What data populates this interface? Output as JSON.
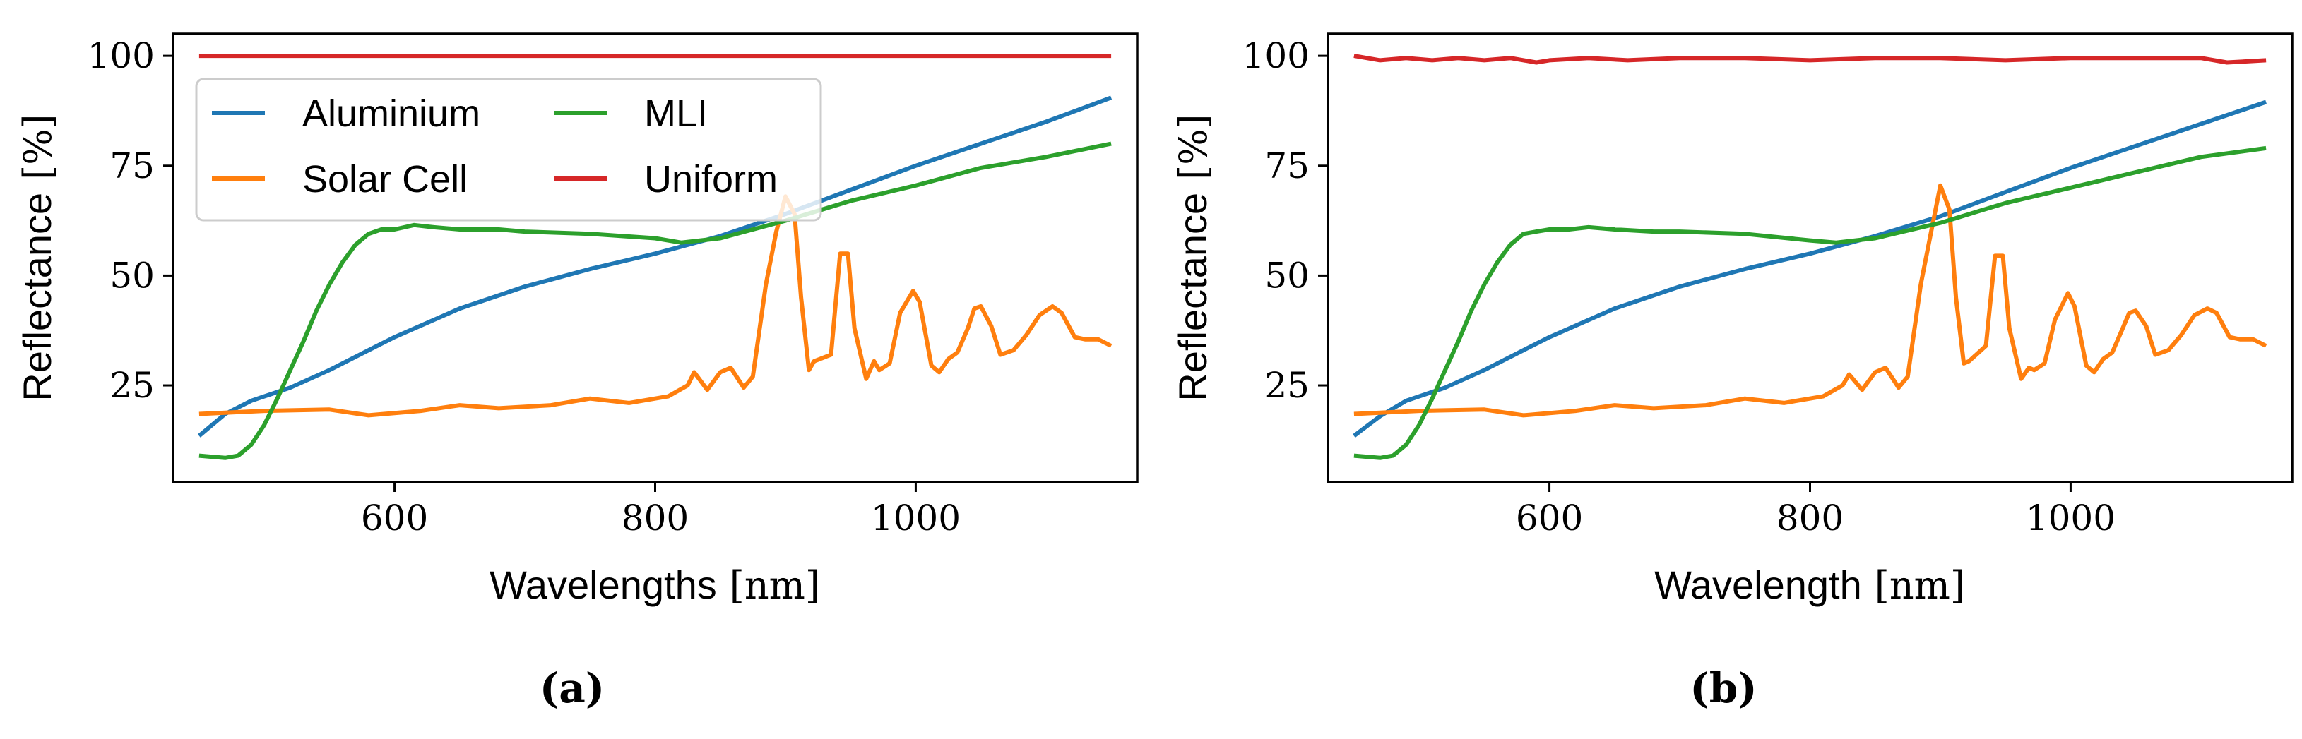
{
  "colors": {
    "Aluminium": "#1f77b4",
    "Solar Cell": "#ff7f0e",
    "MLI": "#2ca02c",
    "Uniform": "#d62728"
  },
  "chart_data": [
    {
      "type": "line",
      "panel_label": "(a)",
      "xlabel": "Wavelengths",
      "xlabel_unit": "[nm]",
      "ylabel": "Reflectance",
      "ylabel_unit": "[%]",
      "xlim": [
        430,
        1170
      ],
      "ylim": [
        3,
        105
      ],
      "xticks": [
        600,
        800,
        1000
      ],
      "yticks": [
        25,
        50,
        75,
        100
      ],
      "legend": {
        "placement": "upper-left",
        "columns": 2,
        "entries": [
          "Aluminium",
          "Solar Cell",
          "MLI",
          "Uniform"
        ]
      },
      "series": [
        {
          "name": "Aluminium",
          "x": [
            450,
            470,
            490,
            520,
            550,
            580,
            600,
            650,
            700,
            750,
            800,
            850,
            900,
            950,
            1000,
            1050,
            1100,
            1150
          ],
          "y": [
            13.5,
            18.5,
            21.5,
            24.5,
            28.5,
            33,
            36,
            42.5,
            47.5,
            51.5,
            55,
            59,
            64,
            69.5,
            75,
            80,
            85,
            90.5
          ]
        },
        {
          "name": "Solar Cell",
          "x": [
            450,
            500,
            550,
            580,
            620,
            650,
            680,
            720,
            750,
            780,
            810,
            825,
            830,
            840,
            850,
            858,
            868,
            875,
            885,
            893,
            900,
            907,
            912,
            918,
            922,
            935,
            942,
            948,
            953,
            962,
            968,
            972,
            980,
            988,
            998,
            1003,
            1012,
            1018,
            1025,
            1032,
            1040,
            1045,
            1050,
            1058,
            1065,
            1075,
            1085,
            1095,
            1105,
            1112,
            1122,
            1130,
            1140,
            1150
          ],
          "y": [
            18.5,
            19.2,
            19.5,
            18.2,
            19.2,
            20.5,
            19.8,
            20.5,
            22,
            21,
            22.5,
            25,
            28,
            24,
            28,
            29,
            24.5,
            27,
            48,
            60,
            68,
            64,
            45,
            28.5,
            30.5,
            32,
            55,
            55,
            38,
            26.5,
            30.5,
            28.5,
            30,
            41.5,
            46.5,
            44,
            29.5,
            28,
            31,
            32.5,
            38,
            42.5,
            43,
            38.5,
            32,
            33,
            36.5,
            41,
            43,
            41.5,
            36,
            35.5,
            35.5,
            34
          ]
        },
        {
          "name": "MLI",
          "x": [
            450,
            470,
            480,
            490,
            500,
            510,
            520,
            530,
            540,
            550,
            560,
            570,
            580,
            590,
            600,
            615,
            630,
            650,
            680,
            700,
            750,
            800,
            820,
            850,
            900,
            950,
            1000,
            1050,
            1100,
            1150
          ],
          "y": [
            9,
            8.5,
            9,
            11.5,
            16,
            22,
            28.5,
            35,
            42,
            48,
            53,
            57,
            59.5,
            60.5,
            60.5,
            61.5,
            61,
            60.5,
            60.5,
            60,
            59.5,
            58.5,
            57.5,
            58.5,
            62.5,
            67,
            70.5,
            74.5,
            77,
            80
          ]
        },
        {
          "name": "Uniform",
          "x": [
            450,
            1150
          ],
          "y": [
            100,
            100
          ]
        }
      ]
    },
    {
      "type": "line",
      "panel_label": "(b)",
      "xlabel": "Wavelength",
      "xlabel_unit": "[nm]",
      "ylabel": "Reflectance",
      "ylabel_unit": "[%]",
      "xlim": [
        430,
        1170
      ],
      "ylim": [
        3,
        105
      ],
      "xticks": [
        600,
        800,
        1000
      ],
      "yticks": [
        25,
        50,
        75,
        100
      ],
      "series": [
        {
          "name": "Aluminium",
          "x": [
            450,
            470,
            490,
            520,
            550,
            580,
            600,
            650,
            700,
            750,
            800,
            850,
            900,
            950,
            1000,
            1050,
            1100,
            1150
          ],
          "y": [
            13.5,
            18,
            21.5,
            24.5,
            28.5,
            33,
            36,
            42.5,
            47.5,
            51.5,
            55,
            59,
            63.5,
            69,
            74.5,
            79.5,
            84.5,
            89.5
          ]
        },
        {
          "name": "Solar Cell",
          "x": [
            450,
            500,
            550,
            580,
            620,
            650,
            680,
            720,
            750,
            780,
            810,
            825,
            830,
            840,
            850,
            858,
            868,
            875,
            885,
            893,
            900,
            907,
            912,
            918,
            922,
            935,
            942,
            948,
            953,
            962,
            968,
            972,
            980,
            988,
            998,
            1003,
            1012,
            1018,
            1025,
            1032,
            1040,
            1045,
            1050,
            1058,
            1065,
            1075,
            1085,
            1095,
            1105,
            1112,
            1122,
            1130,
            1140,
            1150
          ],
          "y": [
            18.5,
            19.2,
            19.5,
            18.2,
            19.2,
            20.5,
            19.8,
            20.5,
            22,
            21,
            22.5,
            25,
            27.5,
            24,
            28,
            29,
            24.5,
            27,
            48,
            60,
            70.5,
            65,
            45,
            30,
            30.5,
            34,
            54.5,
            54.5,
            38,
            26.5,
            29,
            28.5,
            30,
            40,
            46,
            43,
            29.5,
            28,
            31,
            32.5,
            38,
            41.5,
            42,
            38.5,
            32,
            33,
            36.5,
            41,
            42.5,
            41.5,
            36,
            35.5,
            35.5,
            34
          ]
        },
        {
          "name": "MLI",
          "x": [
            450,
            470,
            480,
            490,
            500,
            510,
            520,
            530,
            540,
            550,
            560,
            570,
            580,
            590,
            600,
            615,
            630,
            650,
            680,
            700,
            750,
            800,
            820,
            850,
            900,
            950,
            1000,
            1050,
            1100,
            1150
          ],
          "y": [
            9,
            8.5,
            9,
            11.5,
            16,
            22,
            28.5,
            35,
            42,
            48,
            53,
            57,
            59.5,
            60,
            60.5,
            60.5,
            61,
            60.5,
            60,
            60,
            59.5,
            58,
            57.5,
            58.5,
            62,
            66.5,
            70,
            73.5,
            77,
            79
          ]
        },
        {
          "name": "Uniform",
          "x": [
            450,
            470,
            490,
            510,
            530,
            550,
            570,
            590,
            600,
            630,
            660,
            700,
            750,
            800,
            850,
            900,
            950,
            1000,
            1050,
            1100,
            1120,
            1150
          ],
          "y": [
            100,
            99,
            99.5,
            99,
            99.5,
            99,
            99.5,
            98.5,
            99,
            99.5,
            99,
            99.5,
            99.5,
            99,
            99.5,
            99.5,
            99,
            99.5,
            99.5,
            99.5,
            98.5,
            99
          ]
        }
      ]
    }
  ]
}
